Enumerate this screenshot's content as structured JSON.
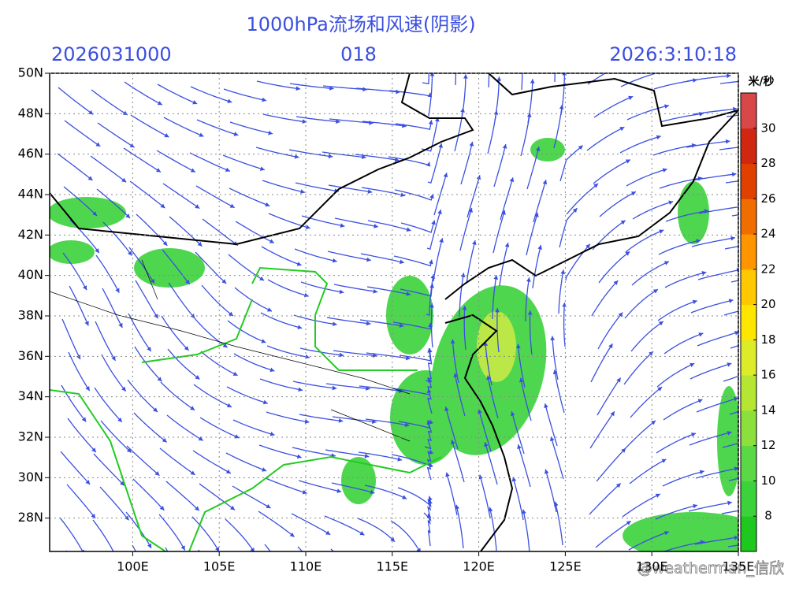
{
  "header": {
    "title": "1000hPa流场和风速(阴影)",
    "init_time": "2026031000",
    "forecast_hour": "018",
    "valid_time": "2026:3:10:18"
  },
  "map": {
    "lon_range": [
      95.2,
      135
    ],
    "lat_range": [
      26.35,
      50
    ],
    "lon_ticks": [
      {
        "value": 100,
        "label": "100E"
      },
      {
        "value": 105,
        "label": "105E"
      },
      {
        "value": 110,
        "label": "110E"
      },
      {
        "value": 115,
        "label": "115E"
      },
      {
        "value": 120,
        "label": "120E"
      },
      {
        "value": 125,
        "label": "125E"
      },
      {
        "value": 130,
        "label": "130E"
      },
      {
        "value": 135,
        "label": "135E"
      }
    ],
    "lat_ticks": [
      {
        "value": 28,
        "label": "28N"
      },
      {
        "value": 30,
        "label": "30N"
      },
      {
        "value": 32,
        "label": "32N"
      },
      {
        "value": 34,
        "label": "34N"
      },
      {
        "value": 36,
        "label": "36N"
      },
      {
        "value": 38,
        "label": "38N"
      },
      {
        "value": 40,
        "label": "40N"
      },
      {
        "value": 42,
        "label": "42N"
      },
      {
        "value": 44,
        "label": "44N"
      },
      {
        "value": 46,
        "label": "46N"
      },
      {
        "value": 48,
        "label": "48N"
      },
      {
        "value": 50,
        "label": "50N"
      }
    ]
  },
  "colorbar": {
    "unit": "米/秒",
    "range": [
      6,
      32
    ],
    "ticks": [
      8,
      10,
      12,
      14,
      16,
      18,
      20,
      22,
      24,
      26,
      28,
      30
    ],
    "colors": [
      "#1ec81e",
      "#3cd23c",
      "#5ad846",
      "#8ce03c",
      "#b4e632",
      "#dcec28",
      "#ffe600",
      "#ffc800",
      "#ff9600",
      "#f06e00",
      "#e04000",
      "#d02810",
      "#d84848"
    ]
  },
  "watermark": "@weatherman_信欣"
}
